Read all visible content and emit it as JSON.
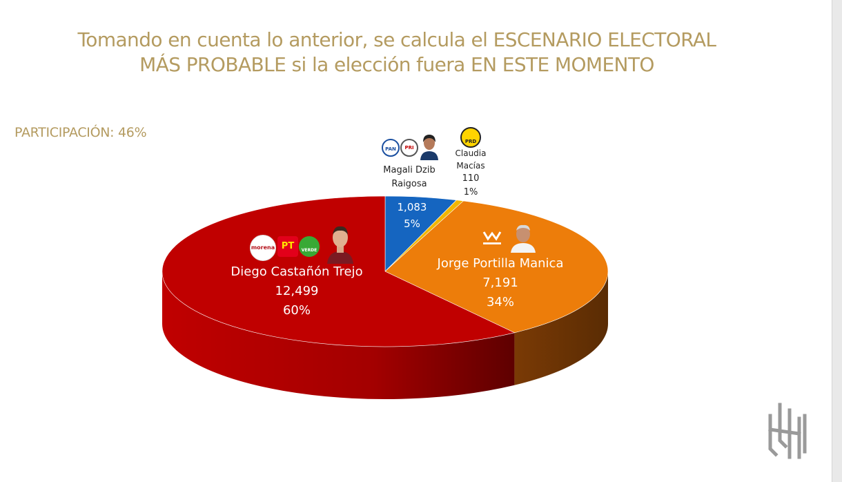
{
  "title": {
    "line1": "Tomando en cuenta lo anterior, se calcula el ESCENARIO ELECTORAL",
    "line2": "MÁS PROBABLE si la elección fuera EN ESTE MOMENTO"
  },
  "participation": "PARTICIPACIÓN: 46%",
  "chart_data": {
    "type": "pie",
    "style": "3d",
    "slices": [
      {
        "name": "Diego Castañón Trejo",
        "value": 12499,
        "value_label": "12,499",
        "percent": 60,
        "percent_label": "60%",
        "color": "#c00000",
        "parties": [
          "morena",
          "PT",
          "VERDE"
        ]
      },
      {
        "name": "Jorge Portilla Manica",
        "value": 7191,
        "value_label": "7,191",
        "percent": 34,
        "percent_label": "34%",
        "color": "#ed7d0a",
        "parties": [
          "MOVIMIENTO CIUDADANO"
        ]
      },
      {
        "name_line1": "Claudia",
        "name_line2": "Macías",
        "value": 110,
        "value_label": "110",
        "percent": 1,
        "percent_label": "1%",
        "color": "#f2b600",
        "parties": [
          "PRD"
        ]
      },
      {
        "name_line1": "Magali Dzib",
        "name_line2": "Raigosa",
        "value": 1083,
        "value_label": "1,083",
        "percent": 5,
        "percent_label": "5%",
        "color": "#1565c0",
        "parties": [
          "PAN",
          "PRI"
        ]
      }
    ]
  },
  "logos": {
    "morena": "morena",
    "pt": "PT",
    "verde": "VERDE",
    "pan": "PAN",
    "pri": "PRI",
    "prd": "PRD",
    "mc": "MOVIMIENTO CIUDADANO"
  }
}
